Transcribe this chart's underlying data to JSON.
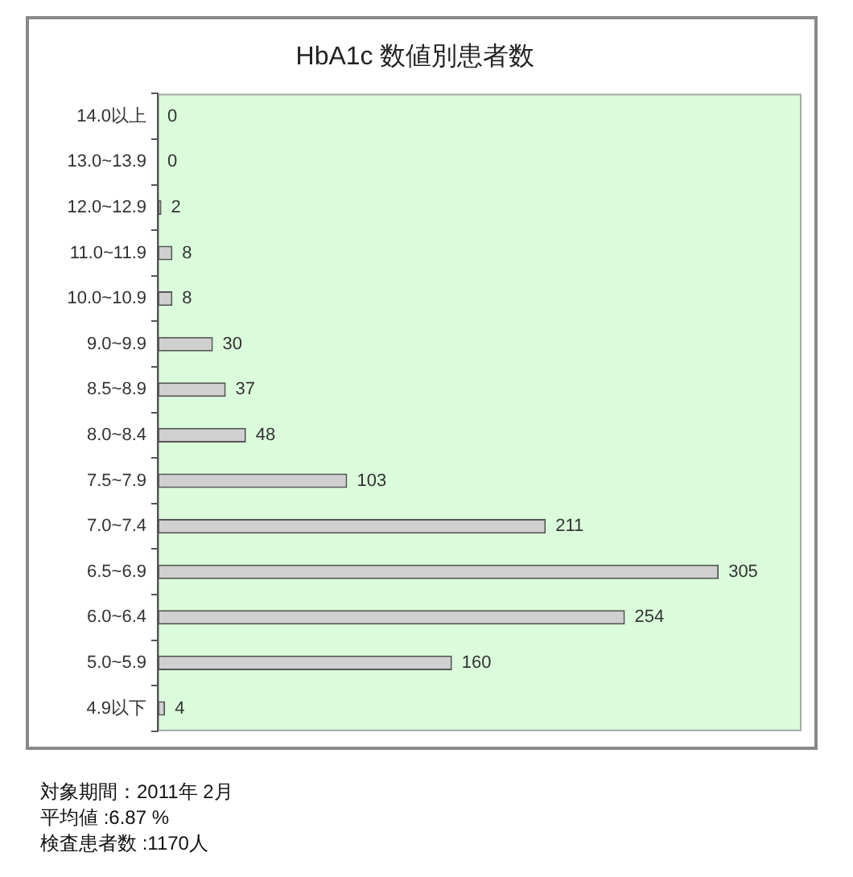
{
  "chart_data": {
    "type": "bar",
    "orientation": "horizontal",
    "title": "HbA1c 数値別患者数",
    "categories": [
      "14.0以上",
      "13.0~13.9",
      "12.0~12.9",
      "11.0~11.9",
      "10.0~10.9",
      "9.0~9.9",
      "8.5~8.9",
      "8.0~8.4",
      "7.5~7.9",
      "7.0~7.4",
      "6.5~6.9",
      "6.0~6.4",
      "5.0~5.9",
      "4.9以下"
    ],
    "values": [
      0,
      0,
      2,
      8,
      8,
      30,
      37,
      48,
      103,
      211,
      305,
      254,
      160,
      4
    ],
    "color": "#d0d0d0",
    "data_labels": true,
    "tick_labels": "y",
    "annotations": [
      "対象期間：2011年 2月",
      "平均値 :6.87 %",
      "検査患者数 :1170人"
    ]
  }
}
